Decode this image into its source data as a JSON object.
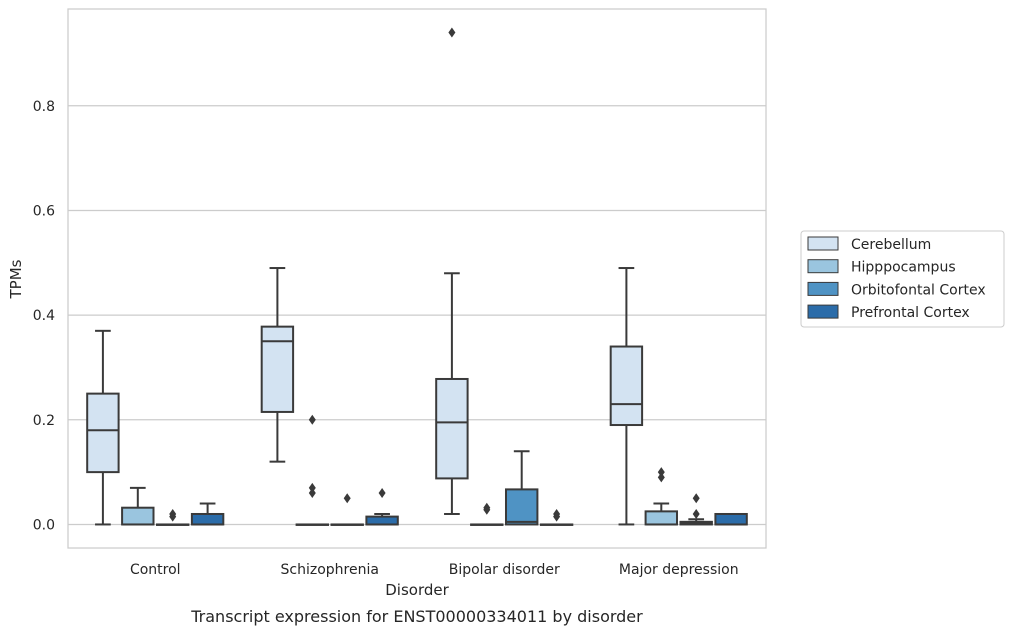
{
  "caption": "Transcript expression for ENST00000334011 by disorder",
  "chart_data": {
    "type": "box",
    "title": "",
    "xlabel": "Disorder",
    "ylabel": "TPMs",
    "ylim": [
      -0.045,
      0.985
    ],
    "yticks": [
      0.0,
      0.2,
      0.4,
      0.6,
      0.8
    ],
    "ytick_labels": [
      "0.0",
      "0.2",
      "0.4",
      "0.6",
      "0.8"
    ],
    "grid": "horizontal",
    "legend_position": "right",
    "categories": [
      "Control",
      "Schizophrenia",
      "Bipolar disorder",
      "Major depression"
    ],
    "series": [
      {
        "name": "Cerebellum",
        "color": "#d3e3f2",
        "boxes": [
          {
            "whislo": 0.0,
            "q1": 0.1,
            "med": 0.18,
            "q3": 0.25,
            "whishi": 0.37,
            "fliers": []
          },
          {
            "whislo": 0.12,
            "q1": 0.215,
            "med": 0.35,
            "q3": 0.378,
            "whishi": 0.49,
            "fliers": []
          },
          {
            "whislo": 0.02,
            "q1": 0.088,
            "med": 0.195,
            "q3": 0.278,
            "whishi": 0.48,
            "fliers": [
              0.94
            ]
          },
          {
            "whislo": 0.0,
            "q1": 0.19,
            "med": 0.23,
            "q3": 0.34,
            "whishi": 0.49,
            "fliers": []
          }
        ]
      },
      {
        "name": "Hipppocampus",
        "color": "#9ac5df",
        "boxes": [
          {
            "whislo": 0.0,
            "q1": 0.0,
            "med": 0.0,
            "q3": 0.032,
            "whishi": 0.07,
            "fliers": []
          },
          {
            "whislo": 0.0,
            "q1": 0.0,
            "med": 0.0,
            "q3": 0.0,
            "whishi": 0.0,
            "fliers": [
              0.2,
              0.07,
              0.06
            ]
          },
          {
            "whislo": 0.0,
            "q1": 0.0,
            "med": 0.0,
            "q3": 0.0,
            "whishi": 0.0,
            "fliers": [
              0.032,
              0.028
            ]
          },
          {
            "whislo": 0.0,
            "q1": 0.0,
            "med": 0.0,
            "q3": 0.025,
            "whishi": 0.04,
            "fliers": [
              0.1,
              0.09
            ]
          }
        ]
      },
      {
        "name": "Orbitofontal Cortex",
        "color": "#4f93c4",
        "boxes": [
          {
            "whislo": 0.0,
            "q1": 0.0,
            "med": 0.0,
            "q3": 0.0,
            "whishi": 0.0,
            "fliers": [
              0.02,
              0.015
            ]
          },
          {
            "whislo": 0.0,
            "q1": 0.0,
            "med": 0.0,
            "q3": 0.0,
            "whishi": 0.0,
            "fliers": [
              0.05
            ]
          },
          {
            "whislo": 0.0,
            "q1": 0.0,
            "med": 0.005,
            "q3": 0.067,
            "whishi": 0.14,
            "fliers": []
          },
          {
            "whislo": 0.0,
            "q1": 0.0,
            "med": 0.003,
            "q3": 0.005,
            "whishi": 0.01,
            "fliers": [
              0.05,
              0.02
            ]
          }
        ]
      },
      {
        "name": "Prefrontal Cortex",
        "color": "#2b6ca9",
        "boxes": [
          {
            "whislo": 0.0,
            "q1": 0.0,
            "med": 0.0,
            "q3": 0.02,
            "whishi": 0.04,
            "fliers": []
          },
          {
            "whislo": 0.0,
            "q1": 0.0,
            "med": 0.0,
            "q3": 0.015,
            "whishi": 0.02,
            "fliers": [
              0.06
            ]
          },
          {
            "whislo": 0.0,
            "q1": 0.0,
            "med": 0.0,
            "q3": 0.0,
            "whishi": 0.0,
            "fliers": [
              0.02,
              0.015
            ]
          },
          {
            "whislo": 0.0,
            "q1": 0.0,
            "med": 0.0,
            "q3": 0.02,
            "whishi": 0.02,
            "fliers": []
          }
        ]
      }
    ]
  }
}
